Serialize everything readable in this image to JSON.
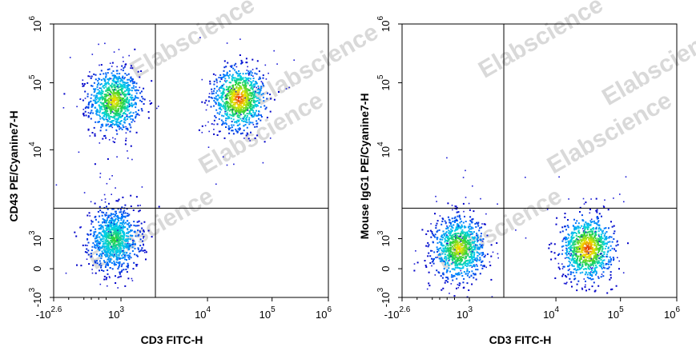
{
  "watermark": {
    "text": "Elabscience",
    "mark": "®"
  },
  "chart_data": [
    {
      "type": "scatter",
      "subtype": "flow-cytometry-density-plot",
      "xlabel": "CD3 FITC-H",
      "ylabel": "CD43 PE/Cyanine7-H",
      "x_scale": "biexponential",
      "y_scale": "biexponential",
      "x_ticks": [
        {
          "value": -398,
          "base": "-10",
          "exp": "2.6"
        },
        {
          "value": 1000,
          "base": "10",
          "exp": "3"
        },
        {
          "value": 10000,
          "base": "10",
          "exp": "4"
        },
        {
          "value": 100000,
          "base": "10",
          "exp": "5"
        },
        {
          "value": 1000000,
          "base": "10",
          "exp": "6"
        }
      ],
      "y_ticks": [
        {
          "value": -1000,
          "base": "-10",
          "exp": "3"
        },
        {
          "value": 0,
          "base": "0",
          "exp": ""
        },
        {
          "value": 1000,
          "base": "10",
          "exp": "3"
        },
        {
          "value": 10000,
          "base": "10",
          "exp": "4"
        },
        {
          "value": 100000,
          "base": "10",
          "exp": "5"
        },
        {
          "value": 1000000,
          "base": "10",
          "exp": "6"
        }
      ],
      "gate": {
        "x": 2500,
        "y": 2200
      },
      "populations": [
        {
          "name": "CD3- CD43+",
          "center": [
            800,
            55000
          ],
          "intensity": "high"
        },
        {
          "name": "CD3+ CD43+",
          "center": [
            30000,
            60000
          ],
          "intensity": "very high"
        },
        {
          "name": "CD3- CD43-",
          "center": [
            800,
            1000
          ],
          "intensity": "medium"
        }
      ]
    },
    {
      "type": "scatter",
      "subtype": "flow-cytometry-density-plot",
      "xlabel": "CD3 FITC-H",
      "ylabel": "Mouse IgG1 PE/Cyanine7-H",
      "x_scale": "biexponential",
      "y_scale": "biexponential",
      "x_ticks": [
        {
          "value": -398,
          "base": "-10",
          "exp": "2.6"
        },
        {
          "value": 1000,
          "base": "10",
          "exp": "3"
        },
        {
          "value": 10000,
          "base": "10",
          "exp": "4"
        },
        {
          "value": 100000,
          "base": "10",
          "exp": "5"
        },
        {
          "value": 1000000,
          "base": "10",
          "exp": "6"
        }
      ],
      "y_ticks": [
        {
          "value": -1000,
          "base": "-10",
          "exp": "3"
        },
        {
          "value": 0,
          "base": "0",
          "exp": ""
        },
        {
          "value": 1000,
          "base": "10",
          "exp": "3"
        },
        {
          "value": 10000,
          "base": "10",
          "exp": "4"
        },
        {
          "value": 100000,
          "base": "10",
          "exp": "5"
        },
        {
          "value": 1000000,
          "base": "10",
          "exp": "6"
        }
      ],
      "gate": {
        "x": 2500,
        "y": 2200
      },
      "populations": [
        {
          "name": "CD3- isotype",
          "center": [
            700,
            700
          ],
          "intensity": "high"
        },
        {
          "name": "CD3+ isotype",
          "center": [
            30000,
            700
          ],
          "intensity": "very high"
        }
      ]
    }
  ]
}
